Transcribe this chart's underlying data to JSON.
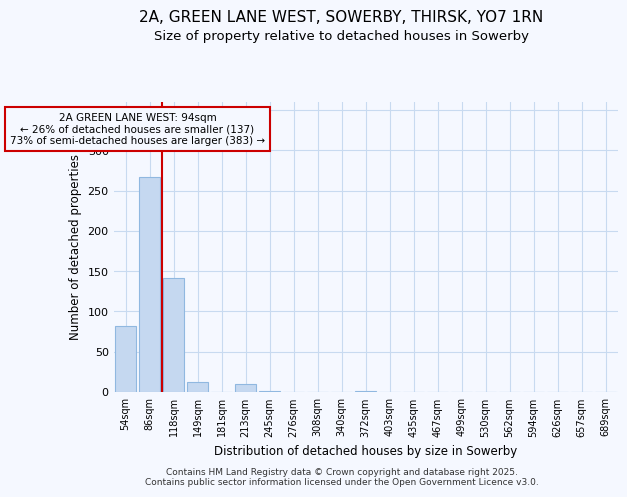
{
  "title1": "2A, GREEN LANE WEST, SOWERBY, THIRSK, YO7 1RN",
  "title2": "Size of property relative to detached houses in Sowerby",
  "xlabel": "Distribution of detached houses by size in Sowerby",
  "ylabel": "Number of detached properties",
  "categories": [
    "54sqm",
    "86sqm",
    "118sqm",
    "149sqm",
    "181sqm",
    "213sqm",
    "245sqm",
    "276sqm",
    "308sqm",
    "340sqm",
    "372sqm",
    "403sqm",
    "435sqm",
    "467sqm",
    "499sqm",
    "530sqm",
    "562sqm",
    "594sqm",
    "626sqm",
    "657sqm",
    "689sqm"
  ],
  "values": [
    82,
    267,
    142,
    13,
    0,
    10,
    1,
    0,
    0,
    0,
    1,
    0,
    0,
    0,
    0,
    0,
    0,
    0,
    0,
    0,
    0
  ],
  "bar_color": "#c5d8f0",
  "bar_edge_color": "#90b8e0",
  "grid_color": "#c8daf0",
  "property_line_x": 1.5,
  "annotation_text": "2A GREEN LANE WEST: 94sqm\n← 26% of detached houses are smaller (137)\n73% of semi-detached houses are larger (383) →",
  "annotation_box_color": "#cc0000",
  "ylim": [
    0,
    360
  ],
  "yticks": [
    0,
    50,
    100,
    150,
    200,
    250,
    300,
    350
  ],
  "footer1": "Contains HM Land Registry data © Crown copyright and database right 2025.",
  "footer2": "Contains public sector information licensed under the Open Government Licence v3.0.",
  "bg_color": "#f5f8ff",
  "plot_bg_color": "#f5f8ff",
  "title1_fontsize": 11,
  "title2_fontsize": 9.5
}
